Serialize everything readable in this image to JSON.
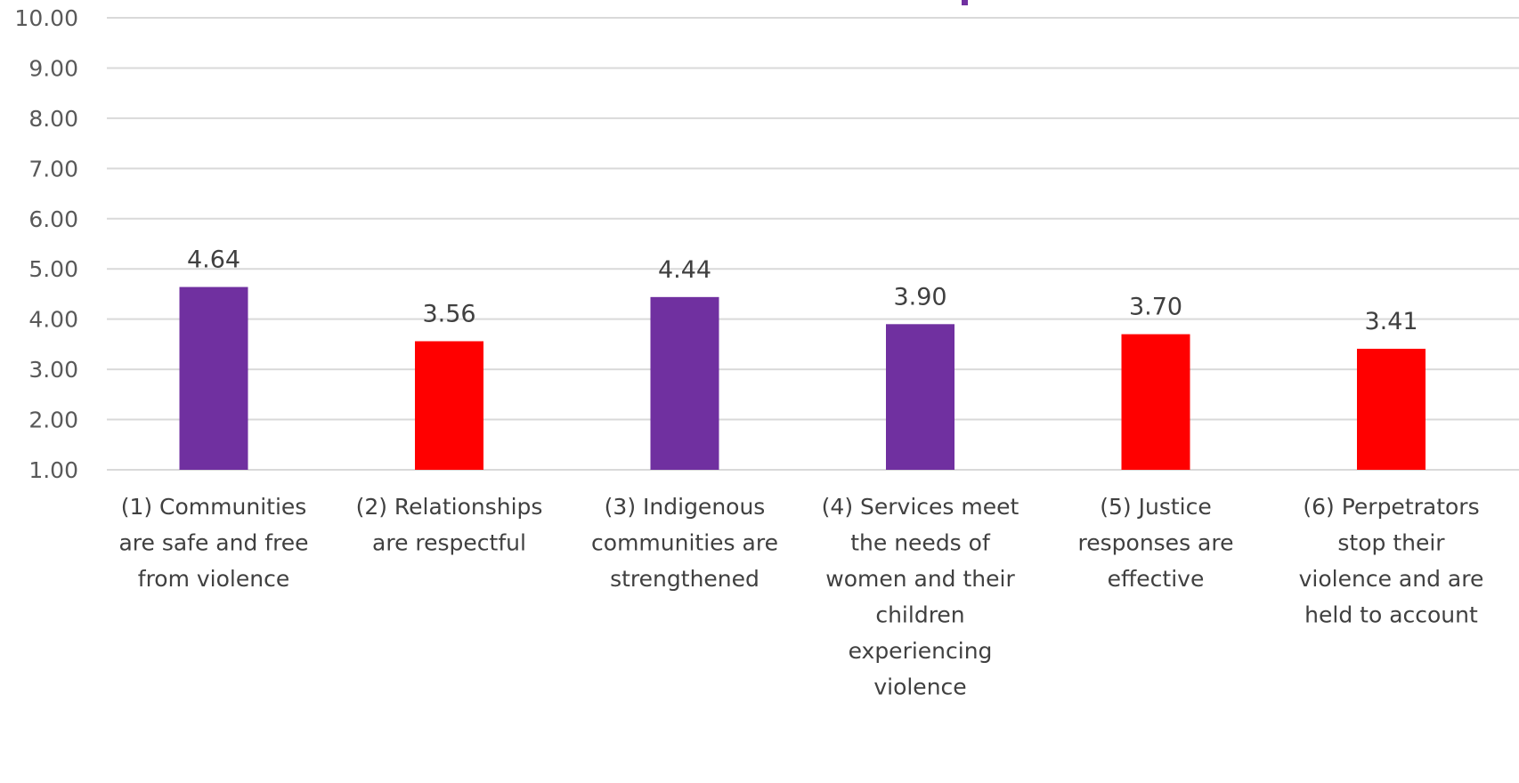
{
  "chart_data": {
    "type": "bar",
    "title": "",
    "xlabel": "",
    "ylabel": "",
    "ylim": [
      1.0,
      10.0
    ],
    "ytick_step": 1.0,
    "ytick_labels": [
      "1.00",
      "2.00",
      "3.00",
      "4.00",
      "5.00",
      "6.00",
      "7.00",
      "8.00",
      "9.00",
      "10.00"
    ],
    "grid": true,
    "legend": "none",
    "categories": [
      "(1) Communities are safe and free from violence",
      "(2) Relationships are respectful",
      "(3) Indigenous communities are strengthened",
      "(4) Services meet the needs of women and their children experiencing violence",
      "(5) Justice responses are effective",
      "(6) Perpetrators stop their violence and are held to account"
    ],
    "category_lines": [
      [
        "(1) Communities",
        "are safe and free",
        "from violence"
      ],
      [
        "(2) Relationships",
        "are respectful"
      ],
      [
        "(3) Indigenous",
        "communities are",
        "strengthened"
      ],
      [
        "(4) Services meet",
        "the needs of",
        "women and their",
        "children",
        "experiencing",
        "violence"
      ],
      [
        "(5) Justice",
        "responses are",
        "effective"
      ],
      [
        "(6) Perpetrators",
        "stop their",
        "violence and are",
        "held to account"
      ]
    ],
    "values": [
      4.64,
      3.56,
      4.44,
      3.9,
      3.7,
      3.41
    ],
    "value_labels": [
      "4.64",
      "3.56",
      "4.44",
      "3.90",
      "3.70",
      "3.41"
    ],
    "bar_colors": [
      "#7030a0",
      "#ff0000",
      "#7030a0",
      "#7030a0",
      "#ff0000",
      "#ff0000"
    ]
  },
  "colors": {
    "purple": "#7030a0",
    "red": "#ff0000",
    "gridline": "#d9d9d9"
  }
}
